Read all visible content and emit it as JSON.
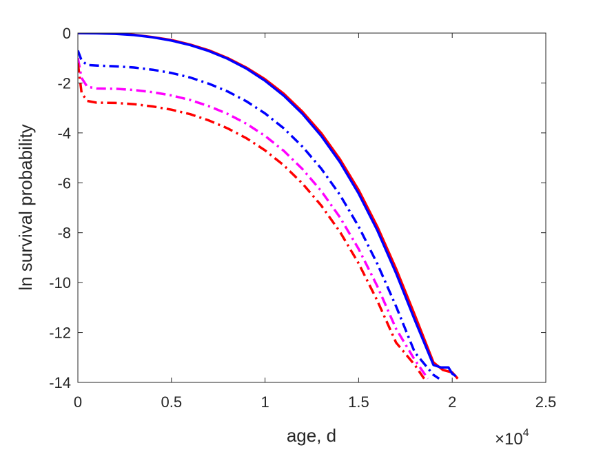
{
  "chart_data": {
    "type": "line",
    "title": "",
    "xlabel": "age, d",
    "ylabel": "ln survival probability",
    "x_multiplier_base": "10",
    "x_multiplier_exponent": "4",
    "x_multiplier_symbol": "×",
    "xlim": [
      0,
      25000
    ],
    "ylim": [
      -14,
      0
    ],
    "x_ticks": [
      0,
      5000,
      10000,
      15000,
      20000,
      25000
    ],
    "x_tick_labels": [
      "0",
      "0.5",
      "1",
      "1.5",
      "2",
      "2.5"
    ],
    "y_ticks": [
      -14,
      -12,
      -10,
      -8,
      -6,
      -4,
      -2,
      0
    ],
    "y_tick_labels": [
      "-14",
      "-12",
      "-10",
      "-8",
      "-6",
      "-4",
      "-2",
      "0"
    ],
    "grid": false,
    "box": true,
    "series": [
      {
        "color": "#ff0000",
        "line_style": "solid",
        "x": [
          0,
          1000,
          2000,
          3000,
          4000,
          5000,
          6000,
          7000,
          8000,
          9000,
          10000,
          11000,
          12000,
          13000,
          14000,
          15000,
          16000,
          17000,
          18000,
          19000,
          19500,
          20000,
          20300
        ],
        "y": [
          0,
          0,
          -0.02,
          -0.07,
          -0.16,
          -0.28,
          -0.46,
          -0.69,
          -1.0,
          -1.38,
          -1.85,
          -2.43,
          -3.15,
          -4.01,
          -5.05,
          -6.29,
          -7.76,
          -9.44,
          -11.3,
          -13.2,
          -13.5,
          -13.6,
          -13.85
        ]
      },
      {
        "color": "#0000ff",
        "line_style": "solid",
        "x": [
          0,
          1000,
          2000,
          3000,
          4000,
          5000,
          6000,
          7000,
          8000,
          9000,
          10000,
          11000,
          12000,
          13000,
          14000,
          15000,
          16000,
          17000,
          18000,
          19000,
          19400,
          19800,
          20000,
          20200
        ],
        "y": [
          0,
          -0.01,
          -0.03,
          -0.08,
          -0.17,
          -0.3,
          -0.48,
          -0.72,
          -1.03,
          -1.42,
          -1.91,
          -2.51,
          -3.24,
          -4.12,
          -5.17,
          -6.43,
          -7.91,
          -9.62,
          -11.5,
          -13.3,
          -13.4,
          -13.4,
          -13.65,
          -13.75
        ]
      },
      {
        "color": "#0000ff",
        "line_style": "dashdot",
        "x": [
          0,
          200,
          500,
          1000,
          2000,
          3000,
          4000,
          5000,
          6000,
          7000,
          8000,
          9000,
          10000,
          11000,
          12000,
          13000,
          14000,
          15000,
          16000,
          17000,
          18000,
          19000,
          19300
        ],
        "y": [
          -0.7,
          -1.1,
          -1.28,
          -1.3,
          -1.33,
          -1.38,
          -1.47,
          -1.6,
          -1.78,
          -2.03,
          -2.34,
          -2.73,
          -3.22,
          -3.82,
          -4.55,
          -5.43,
          -6.48,
          -7.75,
          -9.25,
          -10.95,
          -12.8,
          -13.7,
          -13.85
        ]
      },
      {
        "color": "#ff00ff",
        "line_style": "dashdot",
        "x": [
          0,
          200,
          500,
          1000,
          2000,
          3000,
          4000,
          5000,
          6000,
          7000,
          8000,
          9000,
          10000,
          11000,
          12000,
          13000,
          14000,
          15000,
          16000,
          17000,
          18000,
          18700
        ],
        "y": [
          -1.0,
          -1.8,
          -2.15,
          -2.22,
          -2.23,
          -2.28,
          -2.37,
          -2.5,
          -2.68,
          -2.93,
          -3.24,
          -3.63,
          -4.12,
          -4.72,
          -5.45,
          -6.33,
          -7.38,
          -8.65,
          -10.15,
          -11.85,
          -13.1,
          -13.85
        ]
      },
      {
        "color": "#ff0000",
        "line_style": "dashdot",
        "x": [
          0,
          200,
          500,
          1000,
          2000,
          3000,
          4000,
          5000,
          6000,
          7000,
          8000,
          9000,
          10000,
          11000,
          12000,
          13000,
          14000,
          15000,
          16000,
          17000,
          18000,
          18500
        ],
        "y": [
          -1.2,
          -2.4,
          -2.72,
          -2.79,
          -2.8,
          -2.85,
          -2.94,
          -3.07,
          -3.25,
          -3.5,
          -3.82,
          -4.21,
          -4.7,
          -5.3,
          -6.03,
          -6.91,
          -7.96,
          -9.23,
          -10.73,
          -12.4,
          -13.3,
          -13.85
        ]
      }
    ]
  }
}
